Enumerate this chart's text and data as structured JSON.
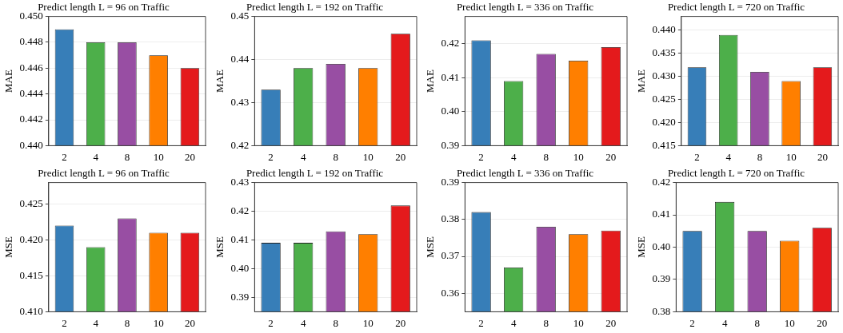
{
  "chart_data": [
    {
      "type": "bar",
      "title": "Predict length L = 96 on Traffic",
      "ylabel": "MAE",
      "categories": [
        "2",
        "4",
        "8",
        "10",
        "20"
      ],
      "values": [
        0.449,
        0.448,
        0.448,
        0.447,
        0.446
      ],
      "colors": [
        "#377eb8",
        "#4daf4a",
        "#984ea3",
        "#ff7f00",
        "#e41a1c"
      ],
      "ylim": [
        0.44,
        0.45
      ],
      "yticks": [
        {
          "value": 0.44,
          "label": "0.440"
        },
        0.442,
        0.444,
        0.446,
        0.448,
        {
          "value": 0.45,
          "label": "0.450"
        }
      ],
      "grid": "y"
    },
    {
      "type": "bar",
      "title": "Predict length L = 192 on Traffic",
      "ylabel": "MAE",
      "categories": [
        "2",
        "4",
        "8",
        "10",
        "20"
      ],
      "values": [
        0.433,
        0.438,
        0.439,
        0.438,
        0.446
      ],
      "colors": [
        "#377eb8",
        "#4daf4a",
        "#984ea3",
        "#ff7f00",
        "#e41a1c"
      ],
      "ylim": [
        0.42,
        0.45
      ],
      "yticks": [
        0.42,
        0.43,
        0.44,
        0.45
      ],
      "grid": "y"
    },
    {
      "type": "bar",
      "title": "Predict length L = 336 on Traffic",
      "ylabel": "MAE",
      "categories": [
        "2",
        "4",
        "8",
        "10",
        "20"
      ],
      "values": [
        0.421,
        0.409,
        0.417,
        0.415,
        0.419
      ],
      "colors": [
        "#377eb8",
        "#4daf4a",
        "#984ea3",
        "#ff7f00",
        "#e41a1c"
      ],
      "ylim": [
        0.39,
        0.428
      ],
      "yticks": [
        0.39,
        {
          "value": 0.4,
          "label": "0.40"
        },
        0.41,
        0.42
      ],
      "grid": "y"
    },
    {
      "type": "bar",
      "title": "Predict length L = 720 on Traffic",
      "ylabel": "MAE",
      "categories": [
        "2",
        "4",
        "8",
        "10",
        "20"
      ],
      "values": [
        0.432,
        0.439,
        0.431,
        0.429,
        0.432
      ],
      "colors": [
        "#377eb8",
        "#4daf4a",
        "#984ea3",
        "#ff7f00",
        "#e41a1c"
      ],
      "ylim": [
        0.415,
        0.443
      ],
      "yticks": [
        0.415,
        {
          "value": 0.42,
          "label": "0.420"
        },
        0.425,
        {
          "value": 0.43,
          "label": "0.430"
        },
        0.435,
        {
          "value": 0.44,
          "label": "0.440"
        }
      ],
      "grid": "y"
    },
    {
      "type": "bar",
      "title": "Predict length L = 96 on Traffic",
      "ylabel": "MSE",
      "categories": [
        "2",
        "4",
        "8",
        "10",
        "20"
      ],
      "values": [
        0.422,
        0.419,
        0.423,
        0.421,
        0.421
      ],
      "colors": [
        "#377eb8",
        "#4daf4a",
        "#984ea3",
        "#ff7f00",
        "#e41a1c"
      ],
      "ylim": [
        0.41,
        0.428
      ],
      "yticks": [
        {
          "value": 0.41,
          "label": "0.410"
        },
        0.415,
        {
          "value": 0.42,
          "label": "0.420"
        },
        0.425
      ],
      "grid": "y"
    },
    {
      "type": "bar",
      "title": "Predict length L = 192 on Traffic",
      "ylabel": "MSE",
      "categories": [
        "2",
        "4",
        "8",
        "10",
        "20"
      ],
      "values": [
        0.409,
        0.409,
        0.413,
        0.412,
        0.422
      ],
      "colors": [
        "#377eb8",
        "#4daf4a",
        "#984ea3",
        "#ff7f00",
        "#e41a1c"
      ],
      "ylim": [
        0.385,
        0.43
      ],
      "yticks": [
        0.39,
        {
          "value": 0.4,
          "label": "0.40"
        },
        0.41,
        0.42,
        0.43
      ],
      "grid": "y"
    },
    {
      "type": "bar",
      "title": "Predict length L = 336 on Traffic",
      "ylabel": "MSE",
      "categories": [
        "2",
        "4",
        "8",
        "10",
        "20"
      ],
      "values": [
        0.382,
        0.367,
        0.378,
        0.376,
        0.377
      ],
      "colors": [
        "#377eb8",
        "#4daf4a",
        "#984ea3",
        "#ff7f00",
        "#e41a1c"
      ],
      "ylim": [
        0.355,
        0.39
      ],
      "yticks": [
        0.36,
        0.37,
        0.38,
        0.39
      ],
      "grid": "y"
    },
    {
      "type": "bar",
      "title": "Predict length L = 720 on Traffic",
      "ylabel": "MSE",
      "categories": [
        "2",
        "4",
        "8",
        "10",
        "20"
      ],
      "values": [
        0.405,
        0.414,
        0.405,
        0.402,
        0.406
      ],
      "colors": [
        "#377eb8",
        "#4daf4a",
        "#984ea3",
        "#ff7f00",
        "#e41a1c"
      ],
      "ylim": [
        0.38,
        0.42
      ],
      "yticks": [
        0.38,
        0.39,
        {
          "value": 0.4,
          "label": "0.40"
        },
        0.41,
        0.42
      ],
      "grid": "y"
    }
  ]
}
